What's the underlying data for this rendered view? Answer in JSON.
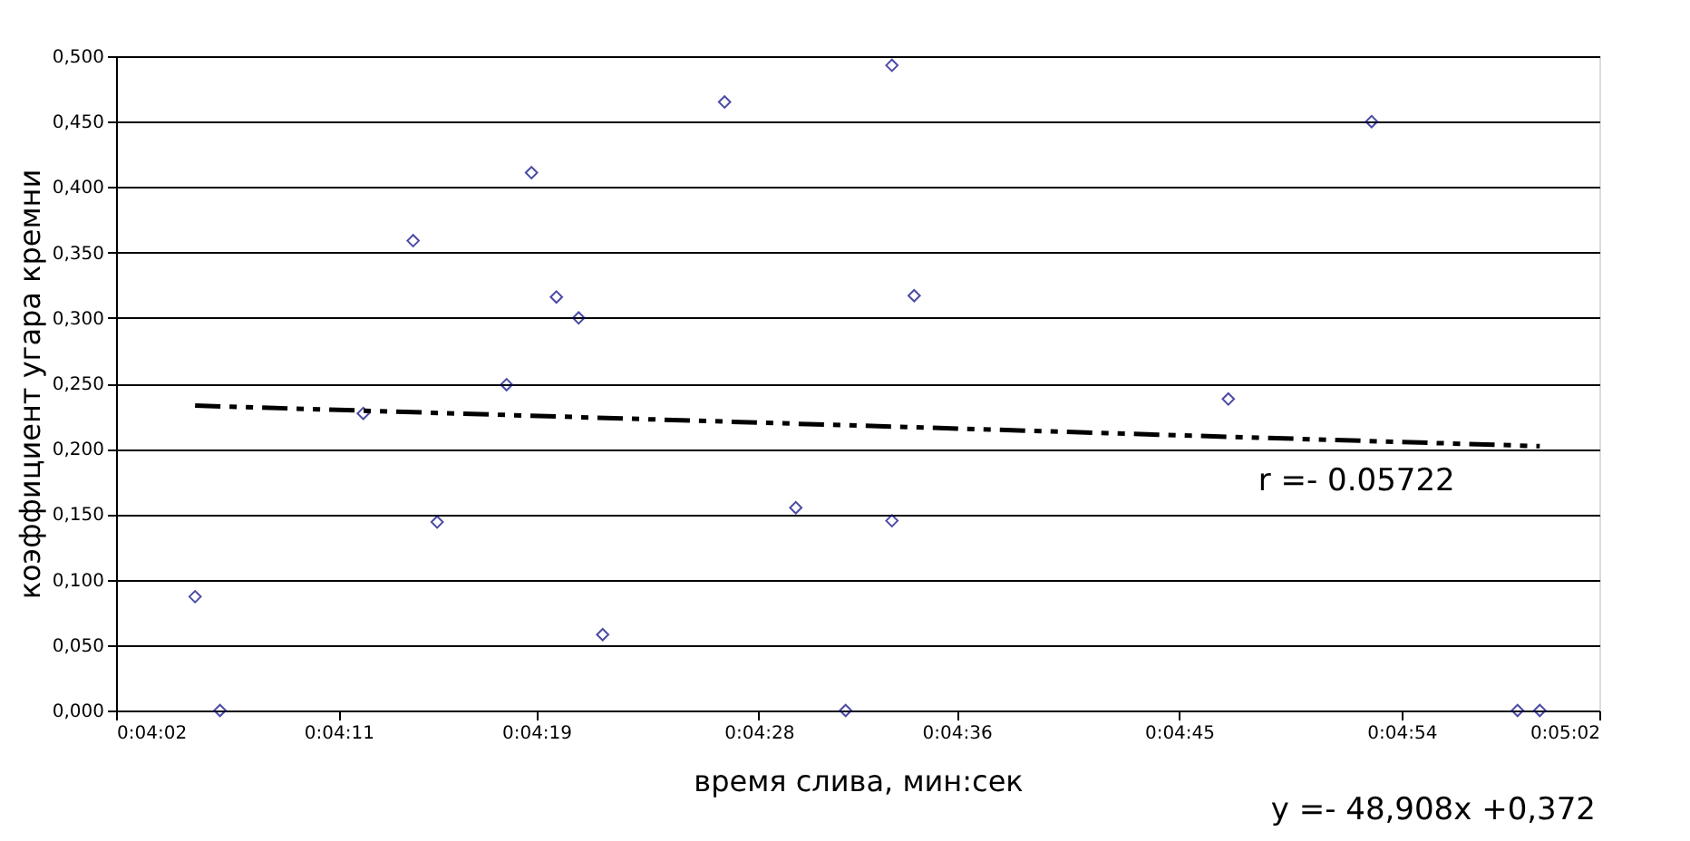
{
  "chart_data": {
    "type": "scatter",
    "xlabel": "время слива, мин:сек",
    "ylabel": "коэффициент угара кремни",
    "x": [
      0.06811,
      0.06839,
      0.07,
      0.07056,
      0.07083,
      0.07161,
      0.07189,
      0.07217,
      0.07242,
      0.07269,
      0.07406,
      0.07486,
      0.07542,
      0.07594,
      0.07594,
      0.07619,
      0.07972,
      0.08133,
      0.08297,
      0.08322
    ],
    "series": [
      {
        "color": "#000080",
        "marker": "diamond",
        "values": [
          0.087,
          0,
          0.227,
          0.359,
          0.144,
          0.249,
          0.411,
          0.316,
          0.3,
          0.058,
          0.465,
          0.155,
          0,
          0.493,
          0.145,
          0.317,
          0.238,
          0.45,
          0,
          0
        ]
      },
      {
        "type": "line",
        "color": "#000000",
        "line_style": "dashed",
        "x": [
          0.06811,
          0.08322
        ],
        "values": [
          0.233,
          0.202
        ]
      }
    ],
    "xlim": [
      0.067222,
      0.083889
    ],
    "xticks": [
      {
        "value": 0.067222,
        "label": "0:04:02"
      },
      {
        "value": 0.069722,
        "label": "0:04:11"
      },
      {
        "value": 0.071944,
        "label": "0:04:19"
      },
      {
        "value": 0.074444,
        "label": "0:04:28"
      },
      {
        "value": 0.076667,
        "label": "0:04:36"
      },
      {
        "value": 0.079167,
        "label": "0:04:45"
      },
      {
        "value": 0.081667,
        "label": "0:04:54"
      },
      {
        "value": 0.083889,
        "label": "0:05:02"
      }
    ],
    "ylim": [
      0,
      0.5
    ],
    "yticks": [
      {
        "value": 0,
        "label": "0,000"
      },
      {
        "value": 0.05,
        "label": "0,050"
      },
      {
        "value": 0.1,
        "label": "0,100"
      },
      {
        "value": 0.15,
        "label": "0,150"
      },
      {
        "value": 0.2,
        "label": "0,200"
      },
      {
        "value": 0.25,
        "label": "0,250"
      },
      {
        "value": 0.3,
        "label": "0,300"
      },
      {
        "value": 0.35,
        "label": "0,350"
      },
      {
        "value": 0.4,
        "label": "0,400"
      },
      {
        "value": 0.45,
        "label": "0,450"
      },
      {
        "value": 0.5,
        "label": "0,500"
      }
    ],
    "grid": "y",
    "annotations": [
      "r =- 0.05722",
      "y =- 48,908x +0,372"
    ]
  }
}
